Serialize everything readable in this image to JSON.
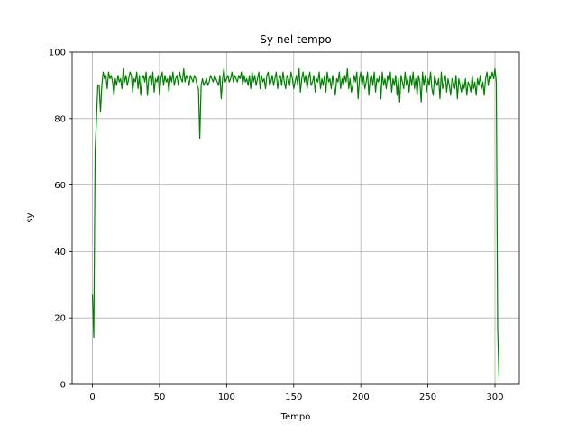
{
  "chart_data": {
    "type": "line",
    "title": "Sy nel tempo",
    "x_label": "Tempo",
    "y_label": "sy",
    "color": "#008000",
    "grid": true,
    "xlim": [
      -15.15,
      318.15
    ],
    "xticks": [
      0,
      50,
      100,
      150,
      200,
      250,
      300
    ],
    "ylim": [
      0,
      100
    ],
    "yticks": [
      0,
      20,
      40,
      60,
      80,
      100
    ],
    "x": [
      0,
      1,
      2,
      3,
      4,
      5,
      6,
      7,
      8,
      9,
      10,
      11,
      12,
      13,
      14,
      15,
      16,
      17,
      18,
      19,
      20,
      21,
      22,
      23,
      24,
      25,
      26,
      27,
      28,
      29,
      30,
      31,
      32,
      33,
      34,
      35,
      36,
      37,
      38,
      39,
      40,
      41,
      42,
      43,
      44,
      45,
      46,
      47,
      48,
      49,
      50,
      51,
      52,
      53,
      54,
      55,
      56,
      57,
      58,
      59,
      60,
      61,
      62,
      63,
      64,
      65,
      66,
      67,
      68,
      69,
      70,
      71,
      72,
      73,
      74,
      75,
      76,
      77,
      78,
      79,
      80,
      81,
      82,
      83,
      84,
      85,
      86,
      87,
      88,
      89,
      90,
      91,
      92,
      93,
      94,
      95,
      96,
      97,
      98,
      99,
      100,
      101,
      102,
      103,
      104,
      105,
      106,
      107,
      108,
      109,
      110,
      111,
      112,
      113,
      114,
      115,
      116,
      117,
      118,
      119,
      120,
      121,
      122,
      123,
      124,
      125,
      126,
      127,
      128,
      129,
      130,
      131,
      132,
      133,
      134,
      135,
      136,
      137,
      138,
      139,
      140,
      141,
      142,
      143,
      144,
      145,
      146,
      147,
      148,
      149,
      150,
      151,
      152,
      153,
      154,
      155,
      156,
      157,
      158,
      159,
      160,
      161,
      162,
      163,
      164,
      165,
      166,
      167,
      168,
      169,
      170,
      171,
      172,
      173,
      174,
      175,
      176,
      177,
      178,
      179,
      180,
      181,
      182,
      183,
      184,
      185,
      186,
      187,
      188,
      189,
      190,
      191,
      192,
      193,
      194,
      195,
      196,
      197,
      198,
      199,
      200,
      201,
      202,
      203,
      204,
      205,
      206,
      207,
      208,
      209,
      210,
      211,
      212,
      213,
      214,
      215,
      216,
      217,
      218,
      219,
      220,
      221,
      222,
      223,
      224,
      225,
      226,
      227,
      228,
      229,
      230,
      231,
      232,
      233,
      234,
      235,
      236,
      237,
      238,
      239,
      240,
      241,
      242,
      243,
      244,
      245,
      246,
      247,
      248,
      249,
      250,
      251,
      252,
      253,
      254,
      255,
      256,
      257,
      258,
      259,
      260,
      261,
      262,
      263,
      264,
      265,
      266,
      267,
      268,
      269,
      270,
      271,
      272,
      273,
      274,
      275,
      276,
      277,
      278,
      279,
      280,
      281,
      282,
      283,
      284,
      285,
      286,
      287,
      288,
      289,
      290,
      291,
      292,
      293,
      294,
      295,
      296,
      297,
      298,
      299,
      300,
      301,
      302,
      303
    ],
    "values": [
      27,
      14,
      70,
      80,
      90,
      90,
      82,
      90,
      94,
      92,
      93,
      89,
      94,
      92,
      93,
      91,
      87,
      92,
      90,
      93,
      91,
      92,
      89,
      95,
      91,
      93,
      90,
      92,
      94,
      93,
      88,
      92,
      91,
      94,
      89,
      93,
      87,
      92,
      93,
      91,
      94,
      87,
      92,
      93,
      90,
      94,
      88,
      92,
      91,
      93,
      87,
      92,
      94,
      90,
      93,
      91,
      92,
      88,
      93,
      91,
      94,
      90,
      92,
      93,
      90,
      94,
      92,
      91,
      95,
      91,
      93,
      92,
      90,
      93,
      92,
      91,
      93,
      92,
      90,
      89,
      74,
      90,
      92,
      90,
      91,
      92,
      90,
      91,
      93,
      92,
      91,
      93,
      92,
      91,
      90,
      93,
      86,
      92,
      95,
      91,
      92,
      93,
      91,
      92,
      94,
      91,
      93,
      92,
      91,
      93,
      92,
      94,
      90,
      93,
      91,
      92,
      90,
      93,
      89,
      94,
      91,
      93,
      90,
      92,
      94,
      89,
      93,
      91,
      92,
      89,
      93,
      94,
      90,
      91,
      93,
      90,
      92,
      94,
      89,
      92,
      93,
      90,
      94,
      91,
      89,
      93,
      92,
      90,
      94,
      92,
      89,
      91,
      93,
      90,
      95,
      88,
      92,
      94,
      91,
      93,
      89,
      92,
      94,
      90,
      91,
      93,
      88,
      92,
      91,
      94,
      89,
      92,
      90,
      93,
      88,
      94,
      91,
      92,
      89,
      93,
      90,
      87,
      92,
      91,
      94,
      89,
      92,
      90,
      93,
      91,
      95,
      89,
      92,
      88,
      90,
      93,
      91,
      94,
      86,
      92,
      94,
      90,
      93,
      89,
      91,
      94,
      87,
      92,
      93,
      90,
      94,
      88,
      92,
      91,
      93,
      86,
      94,
      90,
      92,
      89,
      93,
      91,
      94,
      88,
      92,
      90,
      93,
      87,
      92,
      85,
      93,
      91,
      89,
      94,
      90,
      92,
      88,
      93,
      90,
      94,
      89,
      92,
      87,
      93,
      91,
      85,
      94,
      90,
      93,
      88,
      92,
      90,
      94,
      89,
      87,
      93,
      91,
      90,
      92,
      86,
      94,
      89,
      91,
      93,
      88,
      92,
      90,
      87,
      92,
      91,
      89,
      93,
      86,
      92,
      90,
      88,
      91,
      89,
      92,
      87,
      91,
      90,
      88,
      93,
      89,
      91,
      87,
      92,
      90,
      93,
      89,
      91,
      87,
      92,
      94,
      90,
      93,
      92,
      94,
      92,
      95,
      91,
      17,
      2
    ]
  }
}
